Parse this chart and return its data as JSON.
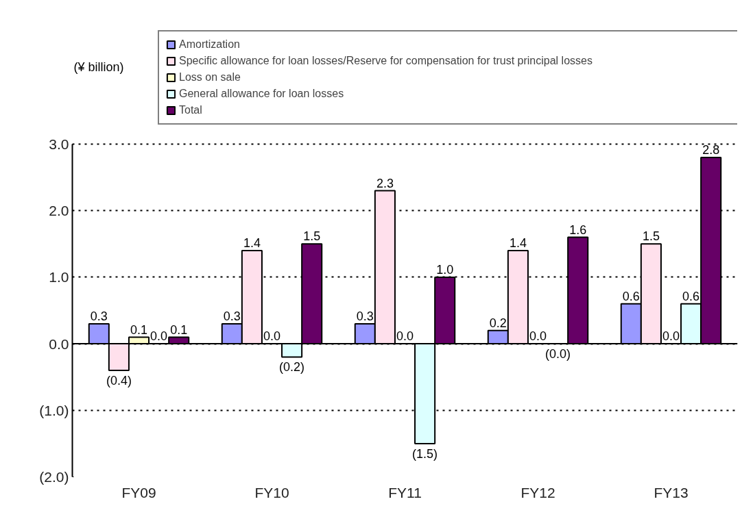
{
  "chart_data": {
    "type": "bar",
    "annotations": [
      "(¥ billion)"
    ],
    "categories": [
      "FY09",
      "FY10",
      "FY11",
      "FY12",
      "FY13"
    ],
    "series": [
      {
        "name": "Amortization",
        "color": "#9999ff",
        "values": [
          0.3,
          0.3,
          0.3,
          0.2,
          0.6
        ],
        "value_labels": [
          "0.3",
          "0.3",
          "0.3",
          "0.2",
          "0.6"
        ]
      },
      {
        "name": "Specific allowance for loan losses/Reserve for compensation for trust principal losses",
        "color": "#ffe0ec",
        "values": [
          -0.4,
          1.4,
          2.3,
          1.4,
          1.5
        ],
        "value_labels": [
          "(0.4)",
          "1.4",
          "2.3",
          "1.4",
          "1.5"
        ]
      },
      {
        "name": "Loss on sale",
        "color": "#ffffcc",
        "values": [
          0.1,
          0.0,
          0.0,
          0.0,
          0.0
        ],
        "value_labels": [
          "0.1",
          "0.0",
          "0.0",
          "0.0",
          "0.0"
        ]
      },
      {
        "name": "General allowance for loan losses",
        "color": "#dcffff",
        "values": [
          0.0,
          -0.2,
          -1.5,
          0.0,
          0.6
        ],
        "value_labels": [
          "0.0",
          "(0.2)",
          "(1.5)",
          "(0.0)",
          "0.6"
        ]
      },
      {
        "name": "Total",
        "color": "#660066",
        "values": [
          0.1,
          1.5,
          1.0,
          1.6,
          2.8
        ],
        "value_labels": [
          "0.1",
          "1.5",
          "1.0",
          "1.6",
          "2.8"
        ]
      }
    ],
    "ylim": [
      -2.0,
      3.0
    ],
    "yticks": [
      {
        "value": -2.0,
        "label": "(2.0)"
      },
      {
        "value": -1.0,
        "label": "(1.0)"
      },
      {
        "value": 0.0,
        "label": "0.0"
      },
      {
        "value": 1.0,
        "label": "1.0"
      },
      {
        "value": 2.0,
        "label": "2.0"
      },
      {
        "value": 3.0,
        "label": "3.0"
      }
    ],
    "grid": "y",
    "legend": "top"
  }
}
